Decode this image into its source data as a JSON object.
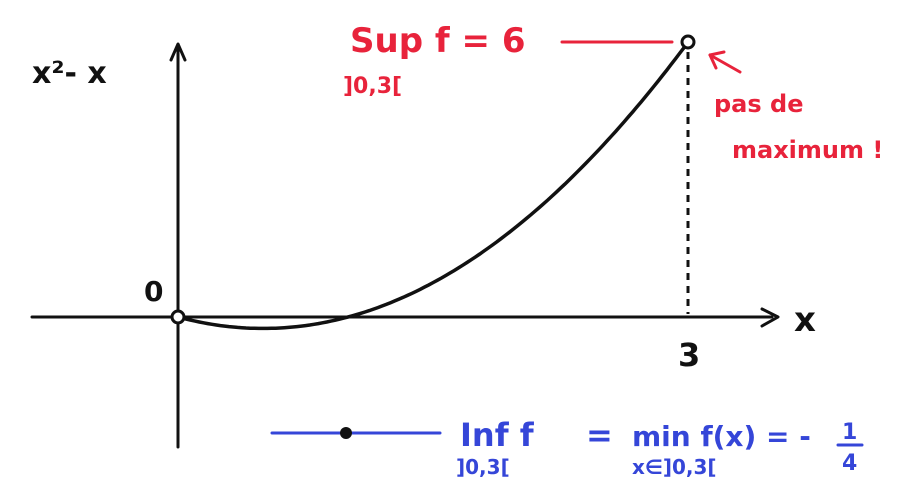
{
  "figure": {
    "y_axis_label": "x²- x",
    "x_axis_label": "x",
    "origin_label": "0",
    "x_tick_label": "3",
    "sup": {
      "main": "Sup f = 6",
      "sub": "]0,3["
    },
    "note": {
      "line1": "pas de",
      "line2": "maximum !"
    },
    "inf": {
      "left": "Inf f",
      "left_sub": "]0,3[",
      "equals": "=",
      "right": "min f(x) = -",
      "right_sub": "x∈]0,3[",
      "frac_num": "1",
      "frac_den": "4"
    },
    "colors": {
      "curve": "#111111",
      "sup": "#e8233b",
      "inf": "#3546d8"
    }
  }
}
